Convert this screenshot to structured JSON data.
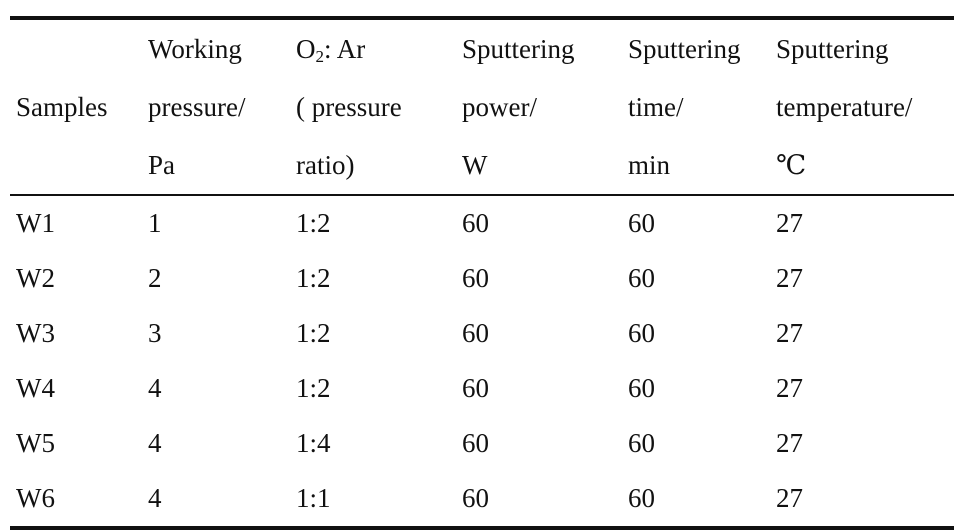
{
  "table": {
    "header": {
      "samples": "Samples",
      "col2_line1": "Working",
      "col2_line2": "pressure/",
      "col2_line3": "Pa",
      "col3_o": "O",
      "col3_sub": "2",
      "col3_rest": ": Ar",
      "col3_line2": "( pressure",
      "col3_line3": "ratio)",
      "col4_line1": "Sputtering",
      "col4_line2": "power/",
      "col4_line3": "W",
      "col5_line1": "Sputtering",
      "col5_line2": "time/",
      "col5_line3": "min",
      "col6_line1": "Sputtering",
      "col6_line2": "temperature/",
      "col6_line3": "℃"
    },
    "rows": [
      [
        "W1",
        "1",
        "1:2",
        "60",
        "60",
        "27"
      ],
      [
        "W2",
        "2",
        "1:2",
        "60",
        "60",
        "27"
      ],
      [
        "W3",
        "3",
        "1:2",
        "60",
        "60",
        "27"
      ],
      [
        "W4",
        "4",
        "1:2",
        "60",
        "60",
        "27"
      ],
      [
        "W5",
        "4",
        "1:4",
        "60",
        "60",
        "27"
      ],
      [
        "W6",
        "4",
        "1:1",
        "60",
        "60",
        "27"
      ]
    ]
  }
}
